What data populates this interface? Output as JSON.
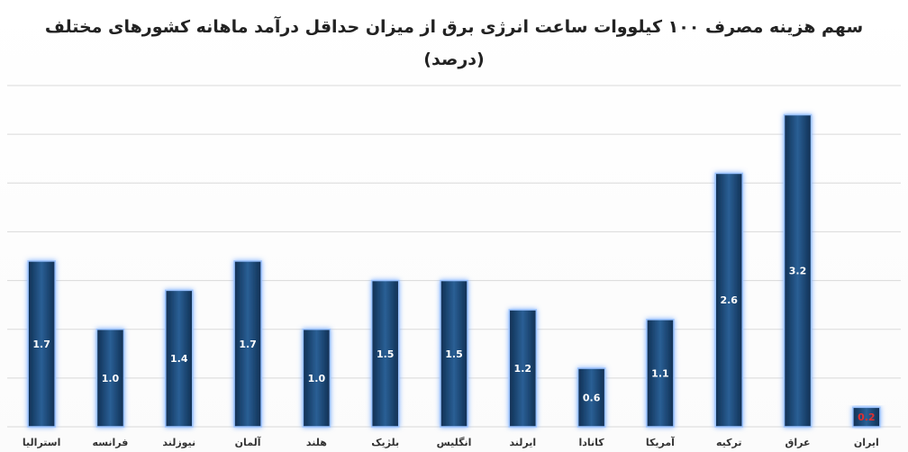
{
  "chart_data": {
    "type": "bar",
    "title": "سهم هزینه مصرف ۱۰۰ کیلووات ساعت انرژی برق از میزان حداقل درآمد ماهانه کشورهای مختلف",
    "subtitle": "(درصد)",
    "categories": [
      "استرالیا",
      "فرانسه",
      "نیوزلند",
      "آلمان",
      "هلند",
      "بلژیک",
      "انگلیس",
      "ایرلند",
      "کانادا",
      "آمریکا",
      "ترکیه",
      "عراق",
      "ایران"
    ],
    "values": [
      1.7,
      1.0,
      1.4,
      1.7,
      1.0,
      1.5,
      1.5,
      1.2,
      0.6,
      1.1,
      2.6,
      3.2,
      0.2
    ],
    "value_labels": [
      "1.7",
      "1.0",
      "1.4",
      "1.7",
      "1.0",
      "1.5",
      "1.5",
      "1.2",
      "0.6",
      "1.1",
      "2.6",
      "3.2",
      "0.2"
    ],
    "highlight_label_category": "ایران",
    "xlabel": "",
    "ylabel": "",
    "ylim": [
      0,
      3.5
    ],
    "grid": true,
    "legend": "none",
    "colors": {
      "bar": "#1f4e79",
      "bar_dark": "#0f2f52",
      "glow": "#7fb0ff",
      "highlight_label": "#e03030"
    }
  }
}
